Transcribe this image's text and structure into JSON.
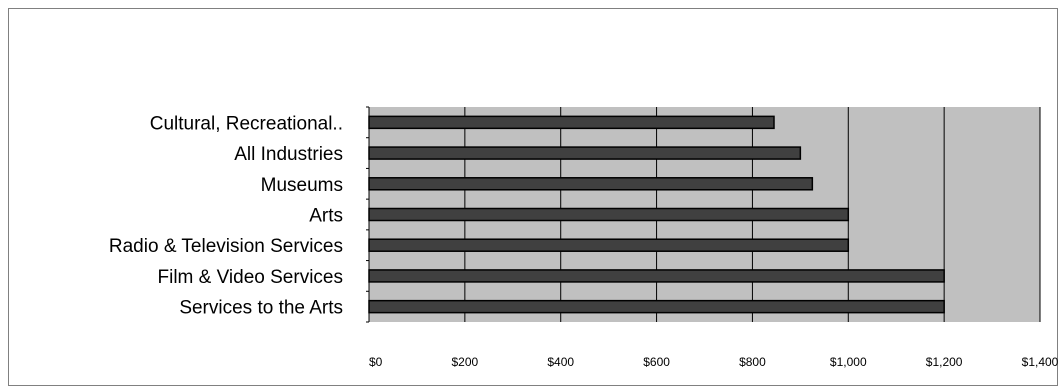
{
  "chart_data": {
    "type": "bar",
    "orientation": "horizontal",
    "title": "",
    "xlabel": "",
    "ylabel": "",
    "categories": [
      "Cultural, Recreational..",
      "All Industries",
      "Museums",
      "Arts",
      "Radio & Television Services",
      "Film & Video Services",
      "Services to the Arts"
    ],
    "values": [
      845,
      900,
      925,
      1000,
      1000,
      1200,
      1200
    ],
    "xlim": [
      0,
      1400
    ],
    "x_ticks": [
      0,
      200,
      400,
      600,
      800,
      1000,
      1200,
      1400
    ],
    "x_tick_labels": [
      "$0",
      "$200",
      "$400",
      "$600",
      "$800",
      "$1,000",
      "$1,200",
      "$1,400"
    ],
    "grid": "vertical major gridlines",
    "legend": "none",
    "colors": {
      "bar_fill": "#404040",
      "bar_edge": "#000000",
      "plot_background": "#c0c0c0",
      "gridline": "#000000"
    }
  }
}
